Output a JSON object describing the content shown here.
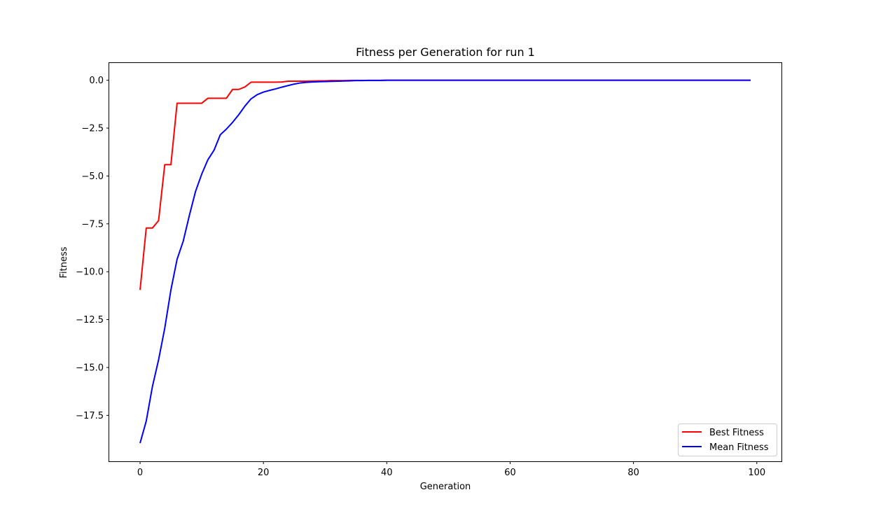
{
  "chart_data": {
    "type": "line",
    "title": "Fitness per Generation for run 1",
    "xlabel": "Generation",
    "ylabel": "Fitness",
    "xlim": [
      -5,
      104
    ],
    "ylim": [
      -19.9,
      0.9
    ],
    "xticks": [
      0,
      20,
      40,
      60,
      80,
      100
    ],
    "xtick_labels": [
      "0",
      "20",
      "40",
      "60",
      "80",
      "100"
    ],
    "yticks": [
      0,
      -2.5,
      -5,
      -7.5,
      -10,
      -12.5,
      -15,
      -17.5
    ],
    "ytick_labels": [
      "0.0",
      "−2.5",
      "−5.0",
      "−7.5",
      "−10.0",
      "−12.5",
      "−15.0",
      "−17.5"
    ],
    "grid": false,
    "legend_position": "lower-right",
    "series": [
      {
        "name": "Best Fitness",
        "color": "#ff0000",
        "x": [
          0,
          1,
          2,
          3,
          4,
          5,
          6,
          7,
          8,
          9,
          10,
          11,
          12,
          13,
          14,
          15,
          16,
          17,
          18,
          19,
          20,
          21,
          22,
          23,
          24,
          25,
          26,
          27,
          28,
          29,
          30,
          31,
          32,
          33,
          34,
          35,
          36,
          37,
          38,
          39,
          40,
          41,
          42,
          43,
          44,
          45,
          46,
          47,
          48,
          49,
          50,
          51,
          52,
          53,
          54,
          55,
          56,
          57,
          58,
          59,
          60,
          61,
          62,
          63,
          64,
          65,
          66,
          67,
          68,
          69,
          70,
          71,
          72,
          73,
          74,
          75,
          76,
          77,
          78,
          79,
          80,
          81,
          82,
          83,
          84,
          85,
          86,
          87,
          88,
          89,
          90,
          91,
          92,
          93,
          94,
          95,
          96,
          97,
          98,
          99
        ],
        "values": [
          -10.95,
          -7.72,
          -7.72,
          -7.33,
          -4.41,
          -4.41,
          -1.2,
          -1.2,
          -1.2,
          -1.2,
          -1.2,
          -0.94,
          -0.94,
          -0.94,
          -0.94,
          -0.48,
          -0.48,
          -0.35,
          -0.1,
          -0.1,
          -0.1,
          -0.1,
          -0.1,
          -0.09,
          -0.05,
          -0.05,
          -0.05,
          -0.05,
          -0.04,
          -0.03,
          -0.03,
          -0.02,
          -0.02,
          -0.02,
          -0.01,
          -0.01,
          -0.01,
          -0.01,
          -0.01,
          -0.01,
          0,
          0,
          0,
          0,
          0,
          0,
          0,
          0,
          0,
          0,
          0,
          0,
          0,
          0,
          0,
          0,
          0,
          0,
          0,
          0,
          0,
          0,
          0,
          0,
          0,
          0,
          0,
          0,
          0,
          0,
          0,
          0,
          0,
          0,
          0,
          0,
          0,
          0,
          0,
          0,
          0,
          0,
          0,
          0,
          0,
          0,
          0,
          0,
          0,
          0,
          0,
          0,
          0,
          0,
          0,
          0,
          0,
          0,
          0,
          0
        ]
      },
      {
        "name": "Mean Fitness",
        "color": "#0000ff",
        "x": [
          0,
          1,
          2,
          3,
          4,
          5,
          6,
          7,
          8,
          9,
          10,
          11,
          12,
          13,
          14,
          15,
          16,
          17,
          18,
          19,
          20,
          21,
          22,
          23,
          24,
          25,
          26,
          27,
          28,
          29,
          30,
          31,
          32,
          33,
          34,
          35,
          36,
          37,
          38,
          39,
          40,
          41,
          42,
          43,
          44,
          45,
          46,
          47,
          48,
          49,
          50,
          51,
          52,
          53,
          54,
          55,
          56,
          57,
          58,
          59,
          60,
          61,
          62,
          63,
          64,
          65,
          66,
          67,
          68,
          69,
          70,
          71,
          72,
          73,
          74,
          75,
          76,
          77,
          78,
          79,
          80,
          81,
          82,
          83,
          84,
          85,
          86,
          87,
          88,
          89,
          90,
          91,
          92,
          93,
          94,
          95,
          96,
          97,
          98,
          99
        ],
        "values": [
          -18.95,
          -17.8,
          -16.0,
          -14.6,
          -12.95,
          -10.95,
          -9.35,
          -8.4,
          -7.05,
          -5.8,
          -4.9,
          -4.15,
          -3.65,
          -2.85,
          -2.55,
          -2.2,
          -1.8,
          -1.35,
          -0.97,
          -0.75,
          -0.62,
          -0.53,
          -0.45,
          -0.36,
          -0.28,
          -0.2,
          -0.14,
          -0.11,
          -0.09,
          -0.08,
          -0.07,
          -0.06,
          -0.05,
          -0.04,
          -0.03,
          -0.02,
          -0.02,
          -0.01,
          -0.01,
          -0.01,
          0,
          0,
          0,
          0,
          0,
          0,
          0,
          0,
          0,
          0,
          0,
          0,
          0,
          0,
          0,
          0,
          0,
          0,
          0,
          0,
          0,
          0,
          0,
          0,
          0,
          0,
          0,
          0,
          0,
          0,
          0,
          0,
          0,
          0,
          0,
          0,
          0,
          0,
          0,
          0,
          0,
          0,
          0,
          0,
          0,
          0,
          0,
          0,
          0,
          0,
          0,
          0,
          0,
          0,
          0,
          0,
          0,
          0,
          0,
          0
        ]
      }
    ]
  }
}
